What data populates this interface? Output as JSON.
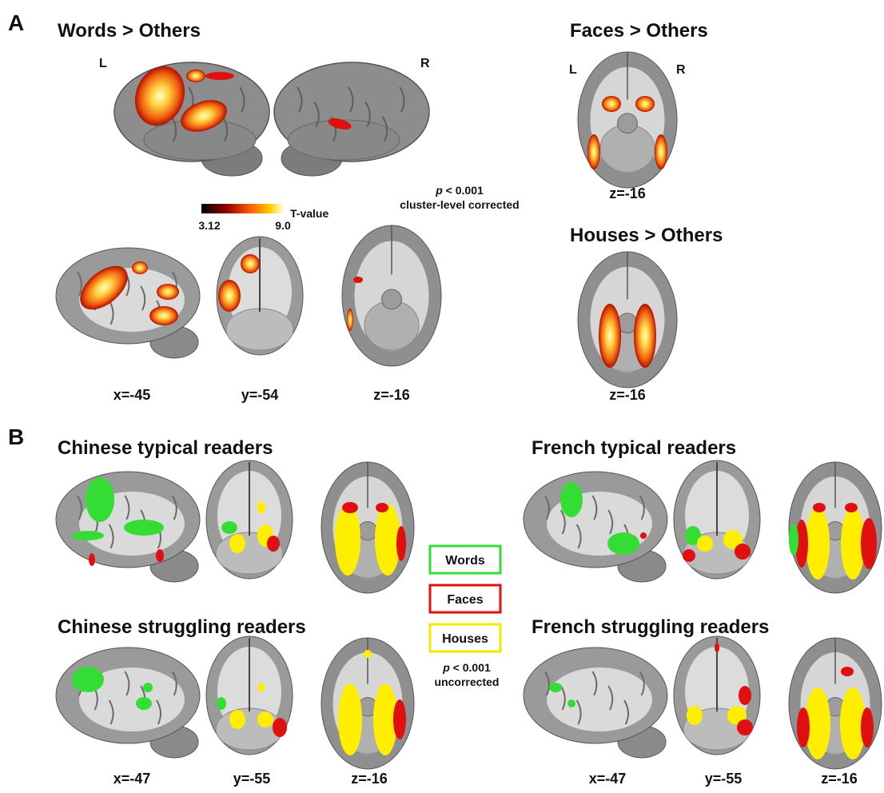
{
  "panel_a": {
    "label": "A",
    "words": {
      "title": "Words > Others",
      "left": "L",
      "right": "R",
      "views": [
        "x=-45",
        "y=-54",
        "z=-16"
      ]
    },
    "colorbar": {
      "min": "3.12",
      "max": "9.0",
      "label": "T-value"
    },
    "threshold": {
      "p": "p",
      "value": "< 0.001",
      "note": "cluster-level corrected"
    },
    "faces": {
      "title": "Faces > Others",
      "left": "L",
      "right": "R",
      "view": "z=-16"
    },
    "houses": {
      "title": "Houses > Others",
      "view": "z=-16"
    }
  },
  "panel_b": {
    "label": "B",
    "groups": [
      "Chinese typical readers",
      "French typical readers",
      "Chinese struggling readers",
      "French struggling readers"
    ],
    "views_chinese": [
      "x=-47",
      "y=-55",
      "z=-16"
    ],
    "views_french": [
      "x=-47",
      "y=-55",
      "z=-16"
    ],
    "legend": [
      "Words",
      "Faces",
      "Houses"
    ],
    "threshold": {
      "p": "p",
      "value": "< 0.001",
      "note": "uncorrected"
    }
  }
}
